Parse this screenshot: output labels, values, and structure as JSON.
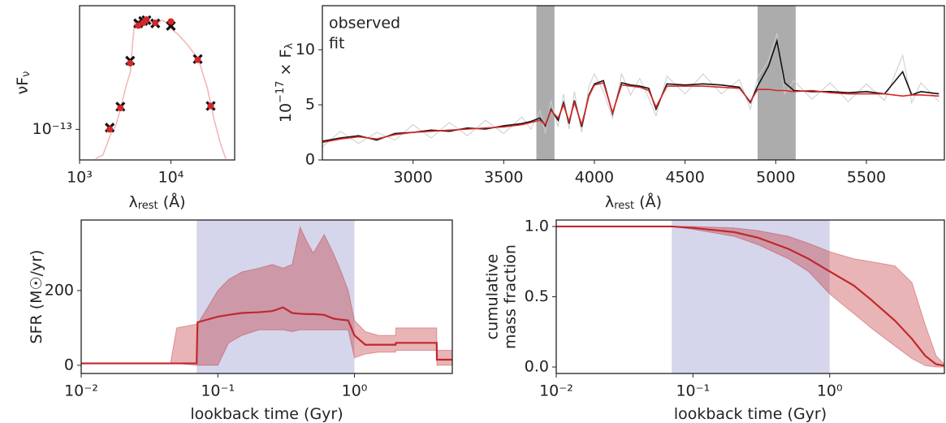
{
  "chart_data": [
    {
      "type": "scatter",
      "xscale": "log",
      "yscale": "log",
      "xlim": [
        1000,
        50000
      ],
      "ylim": [
        7.1e-14,
        4e-13
      ],
      "xticks": [
        {
          "value": 1000,
          "label": "10³"
        },
        {
          "value": 10000,
          "label": "10⁴"
        }
      ],
      "yticks": [
        {
          "value": 1e-13,
          "label": "10⁻¹³"
        }
      ],
      "xlabel": [
        "λ",
        "rest",
        " (Å)"
      ],
      "ylabel": [
        "νF",
        "ν"
      ],
      "series": [
        {
          "color": "#f2b8b8",
          "x": [
            1500,
            1800,
            2000,
            2200,
            2500,
            2800,
            3200,
            3600,
            3800,
            4000,
            4200,
            4500,
            5000,
            6000,
            7000,
            8000,
            9000,
            10000,
            12000,
            15000,
            20000,
            25000,
            30000,
            35000,
            40000
          ],
          "values": [
            7.2e-14,
            7.5e-14,
            8.5e-14,
            9.5e-14,
            1.05e-13,
            1.25e-13,
            1.6e-13,
            1.9e-13,
            2.6e-13,
            3.3e-13,
            3.4e-13,
            3.35e-13,
            3.4e-13,
            3.35e-13,
            3.3e-13,
            3.4e-13,
            3.3e-13,
            3.1e-13,
            2.9e-13,
            2.6e-13,
            2.2e-13,
            1.6e-13,
            1.1e-13,
            8.5e-14,
            7.2e-14
          ]
        },
        {
          "color": "#111111",
          "marker": "x",
          "x": [
            2140,
            2800,
            3580,
            4390,
            4970,
            5400,
            6750,
            10000,
            19700,
            27300
          ],
          "values": [
            1.02e-13,
            1.29e-13,
            2.16e-13,
            3.28e-13,
            3.37e-13,
            3.4e-13,
            3.28e-13,
            3.19e-13,
            2.2e-13,
            1.3e-13
          ]
        },
        {
          "color": "#d62728",
          "marker": "o",
          "x": [
            2140,
            2800,
            3580,
            4390,
            4970,
            5400,
            6750,
            10000,
            19700,
            27300
          ],
          "values": [
            1e-13,
            1.27e-13,
            2.1e-13,
            3.2e-13,
            3.3e-13,
            3.42e-13,
            3.3e-13,
            3.35e-13,
            2.18e-13,
            1.3e-13
          ]
        }
      ]
    },
    {
      "type": "line",
      "xlim": [
        2500,
        5930
      ],
      "ylim": [
        0,
        14
      ],
      "xticks": [
        3000,
        3500,
        4000,
        4500,
        5000,
        5500
      ],
      "yticks": [
        0,
        5,
        10
      ],
      "xlabel": [
        "λ",
        "rest",
        " (Å)"
      ],
      "ylabel": [
        "10",
        "−17",
        " × F",
        "λ"
      ],
      "legend": "upper left",
      "shaded_regions": [
        [
          3680,
          3780
        ],
        [
          4900,
          5110
        ]
      ],
      "shade_color": "#9e9e9e",
      "series": [
        {
          "color": "#cccccc",
          "x": [
            2500,
            2600,
            2700,
            2800,
            2900,
            3000,
            3100,
            3200,
            3300,
            3400,
            3500,
            3600,
            3650,
            3700,
            3730,
            3760,
            3800,
            3830,
            3860,
            3890,
            3930,
            3970,
            4000,
            4050,
            4100,
            4150,
            4200,
            4250,
            4300,
            4340,
            4400,
            4500,
            4600,
            4700,
            4800,
            4860,
            4900,
            4960,
            5007,
            5050,
            5100,
            5200,
            5300,
            5400,
            5500,
            5600,
            5700,
            5750,
            5800,
            5900
          ],
          "values": [
            1.2,
            2.6,
            1.5,
            2.5,
            1.8,
            3.2,
            2.0,
            3.4,
            2.2,
            3.6,
            2.4,
            3.9,
            2.8,
            4.5,
            2.4,
            5.4,
            3.0,
            6.0,
            2.8,
            6.2,
            2.5,
            6.7,
            7.8,
            6.2,
            3.8,
            7.8,
            5.9,
            7.4,
            5.6,
            4.0,
            7.6,
            6.0,
            7.8,
            6.0,
            7.3,
            4.6,
            7.5,
            9.0,
            11.5,
            6.0,
            7.2,
            5.5,
            7.0,
            5.3,
            6.9,
            5.4,
            9.5,
            5.2,
            7.0,
            5.3
          ]
        },
        {
          "name": "observed",
          "color": "#111111",
          "x": [
            2500,
            2600,
            2700,
            2800,
            2900,
            3000,
            3100,
            3200,
            3300,
            3400,
            3500,
            3600,
            3650,
            3700,
            3730,
            3760,
            3800,
            3830,
            3860,
            3890,
            3930,
            3970,
            4000,
            4050,
            4100,
            4150,
            4200,
            4250,
            4300,
            4340,
            4400,
            4500,
            4600,
            4700,
            4800,
            4860,
            4900,
            4960,
            5007,
            5050,
            5100,
            5200,
            5300,
            5400,
            5500,
            5600,
            5700,
            5750,
            5800,
            5900
          ],
          "values": [
            1.7,
            2.0,
            2.2,
            1.8,
            2.4,
            2.5,
            2.7,
            2.6,
            2.9,
            2.8,
            3.1,
            3.3,
            3.5,
            3.8,
            3.1,
            4.6,
            3.6,
            5.2,
            3.3,
            5.4,
            3.0,
            5.9,
            6.9,
            7.2,
            4.2,
            7.0,
            6.8,
            6.7,
            6.5,
            4.6,
            6.9,
            6.8,
            6.9,
            6.8,
            6.6,
            5.2,
            6.7,
            8.5,
            10.8,
            7.0,
            6.3,
            6.2,
            6.2,
            6.1,
            6.2,
            6.0,
            8.0,
            5.9,
            6.2,
            6.0
          ]
        },
        {
          "name": "fit",
          "color": "#d62728",
          "x": [
            2500,
            2600,
            2700,
            2800,
            2900,
            3000,
            3100,
            3200,
            3300,
            3400,
            3500,
            3600,
            3650,
            3700,
            3730,
            3760,
            3800,
            3830,
            3860,
            3890,
            3930,
            3970,
            4000,
            4050,
            4100,
            4150,
            4200,
            4250,
            4300,
            4340,
            4400,
            4500,
            4600,
            4700,
            4800,
            4860,
            4900,
            4960,
            5007,
            5050,
            5100,
            5200,
            5300,
            5400,
            5500,
            5600,
            5700,
            5750,
            5800,
            5900
          ],
          "values": [
            1.6,
            1.9,
            2.1,
            1.9,
            2.3,
            2.5,
            2.6,
            2.7,
            2.8,
            2.9,
            3.0,
            3.2,
            3.4,
            3.6,
            3.2,
            4.5,
            3.8,
            5.0,
            3.5,
            5.2,
            3.2,
            5.8,
            6.8,
            7.0,
            4.3,
            6.8,
            6.7,
            6.6,
            6.3,
            4.8,
            6.7,
            6.7,
            6.7,
            6.6,
            6.5,
            5.3,
            6.4,
            6.4,
            6.3,
            6.3,
            6.2,
            6.3,
            6.1,
            6.0,
            6.0,
            6.0,
            5.8,
            5.9,
            5.9,
            5.8
          ]
        }
      ]
    },
    {
      "type": "line",
      "xscale": "log",
      "xlim": [
        0.01,
        5.2
      ],
      "ylim": [
        -22,
        389
      ],
      "xticks": [
        {
          "value": 0.01,
          "label": "10⁻²"
        },
        {
          "value": 0.1,
          "label": "10⁻¹"
        },
        {
          "value": 1,
          "label": "10⁰"
        }
      ],
      "yticks": [
        0,
        200
      ],
      "xlabel": [
        "lookback time (Gyr)"
      ],
      "ylabel": [
        "SFR (M☉/yr)"
      ],
      "shaded_regions": [
        [
          0.07,
          1.0
        ]
      ],
      "shade_color": "#b9bbdd",
      "series": [
        {
          "color": "#c0282d",
          "x": [
            0.01,
            0.045,
            0.05,
            0.07,
            0.071,
            0.1,
            0.12,
            0.15,
            0.2,
            0.25,
            0.3,
            0.35,
            0.4,
            0.45,
            0.5,
            0.6,
            0.7,
            0.8,
            0.9,
            1.0,
            1.2,
            1.5,
            2.0,
            2.01,
            4.0,
            4.01,
            5.2
          ],
          "values": [
            5,
            5,
            5,
            5,
            115,
            130,
            135,
            140,
            142,
            145,
            155,
            140,
            138,
            137,
            137,
            135,
            125,
            122,
            120,
            80,
            55,
            55,
            55,
            60,
            60,
            15,
            15
          ],
          "lower": [
            5,
            5,
            5,
            0,
            0,
            0,
            60,
            80,
            95,
            95,
            95,
            90,
            95,
            95,
            95,
            95,
            95,
            95,
            95,
            20,
            30,
            35,
            35,
            40,
            40,
            0,
            0
          ],
          "upper": [
            5,
            5,
            100,
            110,
            110,
            200,
            230,
            250,
            260,
            270,
            260,
            270,
            370,
            330,
            300,
            350,
            300,
            250,
            200,
            120,
            90,
            80,
            80,
            100,
            100,
            40,
            40
          ]
        }
      ]
    },
    {
      "type": "line",
      "xscale": "log",
      "xlim": [
        0.01,
        6.9
      ],
      "ylim": [
        -0.046,
        1.046
      ],
      "xticks": [
        {
          "value": 0.01,
          "label": "10⁻²"
        },
        {
          "value": 0.1,
          "label": "10⁻¹"
        },
        {
          "value": 1,
          "label": "10⁰"
        }
      ],
      "yticks": [
        {
          "value": 0,
          "label": "0.0"
        },
        0.5,
        {
          "value": 1,
          "label": "1.0"
        }
      ],
      "xlabel": [
        "lookback time (Gyr)"
      ],
      "ylabel": [
        "cumulative",
        "mass fraction"
      ],
      "shaded_regions": [
        [
          0.07,
          1.0
        ]
      ],
      "shade_color": "#b9bbdd",
      "series": [
        {
          "color": "#c0282d",
          "x": [
            0.01,
            0.07,
            0.1,
            0.2,
            0.3,
            0.5,
            0.7,
            1.0,
            1.5,
            2,
            3,
            4,
            5,
            6,
            6.9
          ],
          "values": [
            1,
            1,
            0.99,
            0.96,
            0.92,
            0.84,
            0.77,
            0.68,
            0.58,
            0.48,
            0.33,
            0.2,
            0.08,
            0.02,
            0.01
          ],
          "lower": [
            1,
            1,
            0.98,
            0.93,
            0.87,
            0.77,
            0.68,
            0.52,
            0.38,
            0.28,
            0.15,
            0.06,
            0.01,
            0,
            0
          ],
          "upper": [
            1,
            1,
            1,
            0.99,
            0.97,
            0.93,
            0.88,
            0.82,
            0.77,
            0.75,
            0.72,
            0.6,
            0.3,
            0.08,
            0.02
          ]
        }
      ]
    }
  ]
}
